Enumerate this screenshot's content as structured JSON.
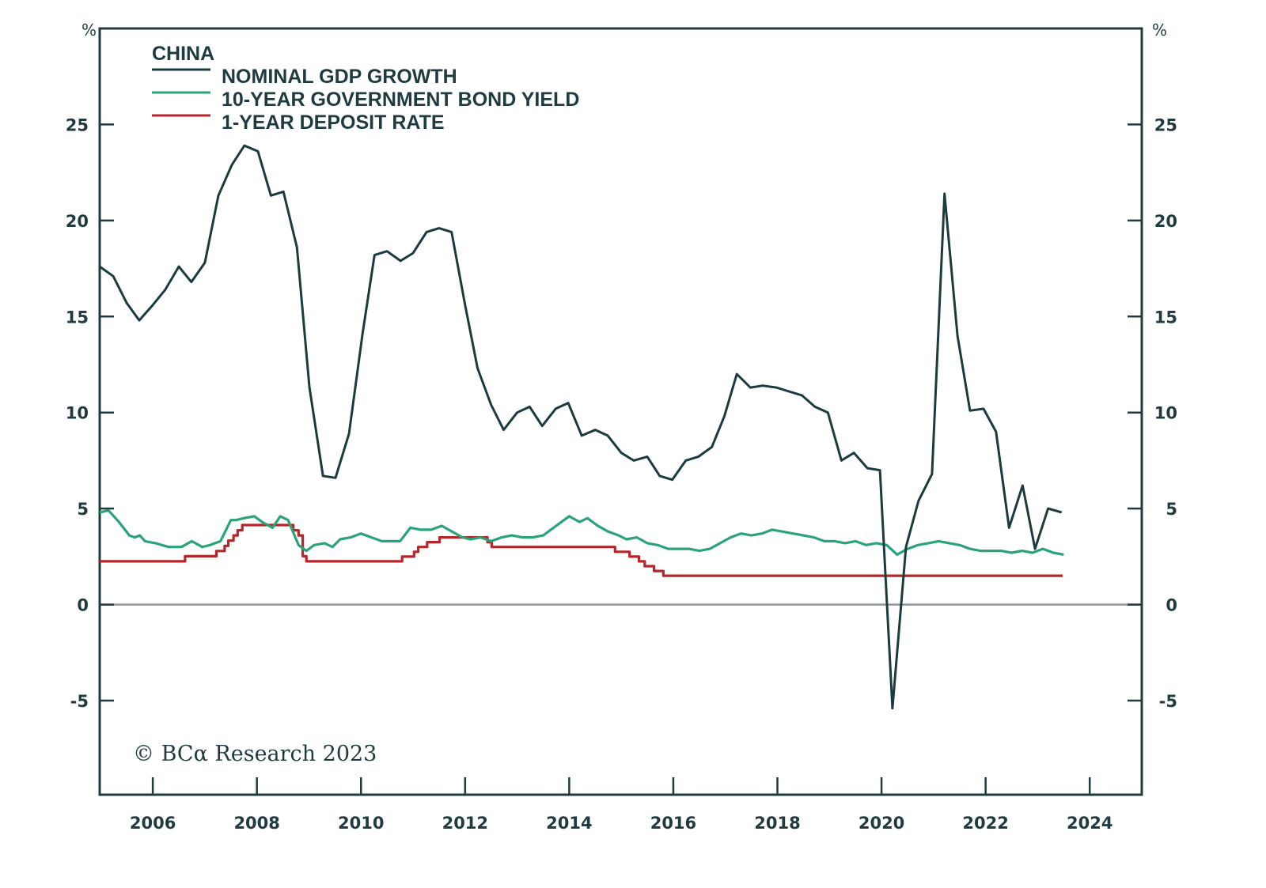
{
  "chart_data": {
    "type": "line",
    "title": "CHINA",
    "xlabel": "",
    "ylabel": "%",
    "y_unit_left": "%",
    "y_unit_right": "%",
    "xlim": [
      2004.98,
      2025.0
    ],
    "ylim": [
      -9.9,
      30.0
    ],
    "x_ticks": [
      2006,
      2008,
      2010,
      2012,
      2014,
      2016,
      2018,
      2020,
      2022,
      2024
    ],
    "x_tick_labels": [
      "2006",
      "2008",
      "2010",
      "2012",
      "2014",
      "2016",
      "2018",
      "2020",
      "2022",
      "2024"
    ],
    "y_ticks": [
      -5,
      0,
      5,
      10,
      15,
      20,
      25
    ],
    "y_tick_labels": [
      "-5",
      "0",
      "5",
      "10",
      "15",
      "20",
      "25"
    ],
    "grid": false,
    "zero_line": true,
    "legend_position": "top-left",
    "annotation": "© BCα Research 2023",
    "series": [
      {
        "name": "NOMINAL GDP GROWTH",
        "color": "#1b3b3f",
        "x": [
          2004.98,
          2005.24,
          2005.5,
          2005.74,
          2006.0,
          2006.24,
          2006.5,
          2006.74,
          2007.0,
          2007.26,
          2007.52,
          2007.76,
          2008.02,
          2008.27,
          2008.51,
          2008.77,
          2009.01,
          2009.27,
          2009.51,
          2009.77,
          2010.03,
          2010.26,
          2010.5,
          2010.76,
          2011.0,
          2011.26,
          2011.5,
          2011.74,
          2012.0,
          2012.24,
          2012.5,
          2012.74,
          2013.0,
          2013.24,
          2013.48,
          2013.74,
          2013.98,
          2014.24,
          2014.5,
          2014.74,
          2015.0,
          2015.24,
          2015.5,
          2015.74,
          2015.98,
          2016.24,
          2016.48,
          2016.74,
          2016.98,
          2017.22,
          2017.48,
          2017.72,
          2017.98,
          2018.22,
          2018.47,
          2018.72,
          2018.97,
          2019.23,
          2019.47,
          2019.73,
          2019.97,
          2020.21,
          2020.47,
          2020.71,
          2020.97,
          2021.21,
          2021.46,
          2021.7,
          2021.96,
          2022.2,
          2022.45,
          2022.71,
          2022.95,
          2023.2,
          2023.46
        ],
        "values": [
          17.6,
          17.1,
          15.7,
          14.8,
          15.6,
          16.4,
          17.6,
          16.8,
          17.8,
          21.3,
          22.9,
          23.9,
          23.6,
          21.3,
          21.5,
          18.6,
          11.3,
          6.7,
          6.6,
          8.9,
          14.1,
          18.2,
          18.4,
          17.9,
          18.3,
          19.4,
          19.6,
          19.4,
          15.6,
          12.3,
          10.4,
          9.1,
          10.0,
          10.3,
          9.3,
          10.2,
          10.5,
          8.8,
          9.1,
          8.8,
          7.9,
          7.5,
          7.7,
          6.7,
          6.5,
          7.5,
          7.7,
          8.2,
          9.8,
          12.0,
          11.3,
          11.4,
          11.3,
          11.1,
          10.9,
          10.3,
          10.0,
          7.5,
          7.9,
          7.1,
          7.0,
          -5.4,
          3.0,
          5.4,
          6.8,
          21.4,
          14.0,
          10.1,
          10.2,
          9.0,
          4.0,
          6.2,
          2.9,
          5.0,
          4.8
        ]
      },
      {
        "name": "10-YEAR GOVERNMENT BOND YIELD",
        "color": "#2aa37a",
        "x": [
          2004.98,
          2005.15,
          2005.35,
          2005.55,
          2005.65,
          2005.75,
          2005.85,
          2006.05,
          2006.3,
          2006.55,
          2006.75,
          2006.95,
          2007.1,
          2007.3,
          2007.5,
          2007.6,
          2007.75,
          2007.95,
          2008.1,
          2008.3,
          2008.45,
          2008.6,
          2008.8,
          2008.95,
          2009.1,
          2009.3,
          2009.45,
          2009.6,
          2009.8,
          2010.0,
          2010.2,
          2010.4,
          2010.6,
          2010.75,
          2010.95,
          2011.15,
          2011.35,
          2011.55,
          2011.75,
          2011.95,
          2012.1,
          2012.3,
          2012.5,
          2012.7,
          2012.9,
          2013.1,
          2013.3,
          2013.5,
          2013.7,
          2013.85,
          2014.0,
          2014.2,
          2014.35,
          2014.55,
          2014.75,
          2014.95,
          2015.1,
          2015.3,
          2015.5,
          2015.7,
          2015.9,
          2016.1,
          2016.3,
          2016.5,
          2016.7,
          2016.9,
          2017.1,
          2017.3,
          2017.5,
          2017.7,
          2017.9,
          2018.1,
          2018.3,
          2018.5,
          2018.7,
          2018.9,
          2019.1,
          2019.3,
          2019.5,
          2019.7,
          2019.9,
          2020.1,
          2020.3,
          2020.5,
          2020.7,
          2020.9,
          2021.1,
          2021.3,
          2021.5,
          2021.7,
          2021.9,
          2022.1,
          2022.3,
          2022.5,
          2022.7,
          2022.9,
          2023.1,
          2023.3,
          2023.5
        ],
        "values": [
          4.8,
          4.9,
          4.3,
          3.6,
          3.5,
          3.6,
          3.3,
          3.2,
          3.0,
          3.0,
          3.3,
          3.0,
          3.1,
          3.3,
          4.4,
          4.4,
          4.5,
          4.6,
          4.3,
          4.0,
          4.6,
          4.4,
          3.1,
          2.8,
          3.1,
          3.2,
          3.0,
          3.4,
          3.5,
          3.7,
          3.5,
          3.3,
          3.3,
          3.3,
          4.0,
          3.9,
          3.9,
          4.1,
          3.8,
          3.5,
          3.4,
          3.5,
          3.3,
          3.5,
          3.6,
          3.5,
          3.5,
          3.6,
          4.0,
          4.3,
          4.6,
          4.3,
          4.5,
          4.1,
          3.8,
          3.6,
          3.4,
          3.5,
          3.2,
          3.1,
          2.9,
          2.9,
          2.9,
          2.8,
          2.9,
          3.2,
          3.5,
          3.7,
          3.6,
          3.7,
          3.9,
          3.8,
          3.7,
          3.6,
          3.5,
          3.3,
          3.3,
          3.2,
          3.3,
          3.1,
          3.2,
          3.1,
          2.6,
          2.9,
          3.1,
          3.2,
          3.3,
          3.2,
          3.1,
          2.9,
          2.8,
          2.8,
          2.8,
          2.7,
          2.8,
          2.7,
          2.9,
          2.7,
          2.6
        ]
      },
      {
        "name": "1-YEAR DEPOSIT RATE",
        "color": "#b5262b",
        "step": true,
        "x": [
          2004.98,
          2006.62,
          2007.22,
          2007.38,
          2007.45,
          2007.55,
          2007.63,
          2007.72,
          2008.7,
          2008.8,
          2008.88,
          2008.95,
          2010.79,
          2011.02,
          2011.1,
          2011.27,
          2011.51,
          2012.43,
          2012.51,
          2014.88,
          2015.16,
          2015.34,
          2015.45,
          2015.63,
          2015.81,
          2023.48
        ],
        "values": [
          2.25,
          2.52,
          2.79,
          3.06,
          3.33,
          3.6,
          3.87,
          4.14,
          3.87,
          3.6,
          2.52,
          2.25,
          2.5,
          2.75,
          3.0,
          3.25,
          3.5,
          3.25,
          3.0,
          2.75,
          2.5,
          2.25,
          2.0,
          1.75,
          1.5,
          1.5
        ]
      }
    ]
  }
}
